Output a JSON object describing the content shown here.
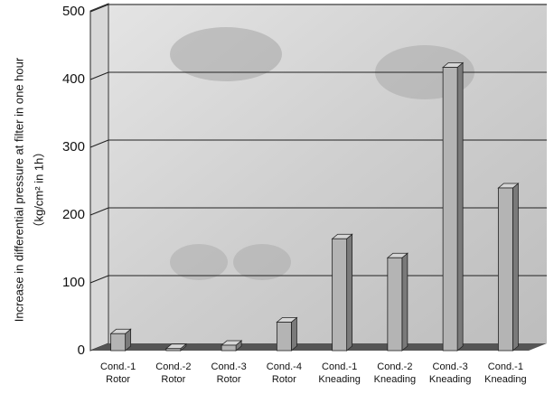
{
  "chart_data": {
    "type": "bar3d",
    "y_label": "Increase in differential pressure at filter in one hour",
    "y_label_unit": "（kg/cm² in 1h）",
    "categories": [
      [
        "Cond.-1",
        "Rotor"
      ],
      [
        "Cond.-2",
        "Rotor"
      ],
      [
        "Cond.-3",
        "Rotor"
      ],
      [
        "Cond.-4",
        "Rotor"
      ],
      [
        "Cond.-1",
        "Kneading"
      ],
      [
        "Cond.-2",
        "Kneading"
      ],
      [
        "Cond.-3",
        "Kneading"
      ],
      [
        "Cond.-1",
        "Kneading"
      ]
    ],
    "values": [
      25,
      3,
      8,
      42,
      165,
      137,
      418,
      240
    ],
    "color": "#b4b4b4",
    "ylim": [
      0,
      500
    ],
    "yticks": [
      0,
      100,
      200,
      300,
      400,
      500
    ],
    "grid": true
  }
}
